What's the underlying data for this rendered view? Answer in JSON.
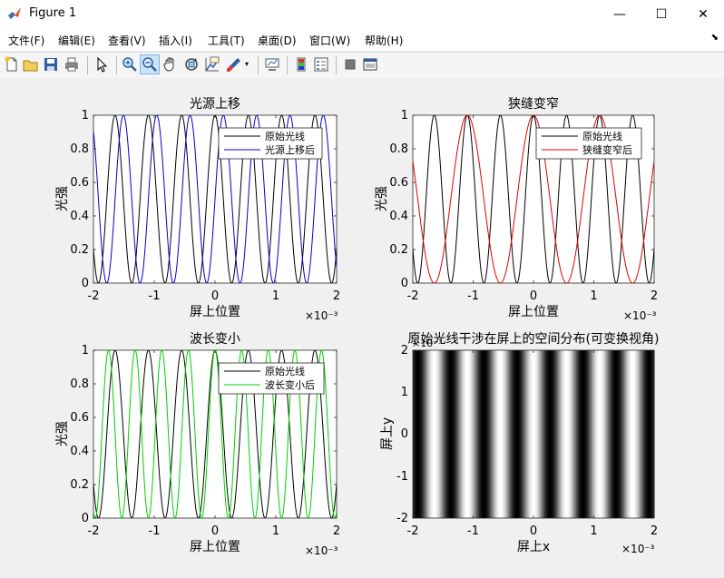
{
  "window": {
    "title": "Figure 1",
    "minimize": "—",
    "maximize": "☐",
    "close": "✕"
  },
  "menu": [
    "文件(F)",
    "编辑(E)",
    "查看(V)",
    "插入(I)",
    "工具(T)",
    "桌面(D)",
    "窗口(W)",
    "帮助(H)"
  ],
  "toolbar": {
    "icons": [
      "new-figure-icon",
      "open-file-icon",
      "save-icon",
      "print-icon",
      "pointer-icon",
      "zoom-in-icon",
      "zoom-out-icon",
      "pan-icon",
      "rotate-3d-icon",
      "data-cursor-icon",
      "brush-icon",
      "brush-dropdown-icon",
      "link-plot-icon",
      "insert-colorbar-icon",
      "insert-legend-icon",
      "hide-plot-tools-icon",
      "show-plot-tools-icon"
    ]
  },
  "colors": {
    "original": "#000000",
    "shift": "#0000cc",
    "narrow": "#e00000",
    "wavelength": "#00d000"
  },
  "chart_data": [
    {
      "type": "line",
      "title": "光源上移",
      "xlabel": "屏上位置",
      "ylabel": "光强",
      "x_exponent": "×10⁻³",
      "xlim": [
        -0.002,
        0.002
      ],
      "ylim": [
        0,
        1
      ],
      "xticks": [
        "-2",
        "-1",
        "0",
        "1",
        "2"
      ],
      "yticks": [
        "0",
        "0.2",
        "0.4",
        "0.6",
        "0.8",
        "1"
      ],
      "legend": {
        "position": "top-right",
        "entries": [
          "原始光线",
          "光源上移后"
        ]
      },
      "series": [
        {
          "name": "原始光线",
          "function": "cos^2",
          "fringe_period": 0.000548,
          "phase_offset": 0.0,
          "color": "#000000"
        },
        {
          "name": "光源上移后",
          "function": "cos^2",
          "fringe_period": 0.000548,
          "phase_offset": 0.000137,
          "color": "#0000cc"
        }
      ]
    },
    {
      "type": "line",
      "title": "狭缝变窄",
      "xlabel": "屏上位置",
      "ylabel": "光强",
      "x_exponent": "×10⁻³",
      "xlim": [
        -0.002,
        0.002
      ],
      "ylim": [
        0,
        1
      ],
      "xticks": [
        "-2",
        "-1",
        "0",
        "1",
        "2"
      ],
      "yticks": [
        "0",
        "0.2",
        "0.4",
        "0.6",
        "0.8",
        "1"
      ],
      "legend": {
        "position": "top-right",
        "entries": [
          "原始光线",
          "狭缝变窄后"
        ]
      },
      "series": [
        {
          "name": "原始光线",
          "function": "cos^2",
          "fringe_period": 0.000548,
          "phase_offset": 0.0,
          "color": "#000000"
        },
        {
          "name": "狭缝变窄后",
          "function": "cos^2",
          "fringe_period": 0.001096,
          "phase_offset": 0.0,
          "color": "#e00000"
        }
      ]
    },
    {
      "type": "line",
      "title": "波长变小",
      "xlabel": "屏上位置",
      "ylabel": "光强",
      "x_exponent": "×10⁻³",
      "xlim": [
        -0.002,
        0.002
      ],
      "ylim": [
        0,
        1
      ],
      "xticks": [
        "-2",
        "-1",
        "0",
        "1",
        "2"
      ],
      "yticks": [
        "0",
        "0.2",
        "0.4",
        "0.6",
        "0.8",
        "1"
      ],
      "legend": {
        "position": "top-right",
        "entries": [
          "原始光线",
          "波长变小后"
        ]
      },
      "series": [
        {
          "name": "原始光线",
          "function": "cos^2",
          "fringe_period": 0.000548,
          "phase_offset": 0.0,
          "color": "#000000"
        },
        {
          "name": "波长变小后",
          "function": "cos^2",
          "fringe_period": 0.000438,
          "phase_offset": 0.0,
          "color": "#00d000"
        }
      ]
    },
    {
      "type": "heatmap",
      "title": "原始光线干涉在屏上的空间分布(可变换视角)",
      "xlabel": "屏上x",
      "ylabel": "屏上y",
      "x_exponent": "×10⁻³",
      "y_exponent": "×10⁻³",
      "xlim": [
        -0.002,
        0.002
      ],
      "ylim": [
        -0.002,
        0.002
      ],
      "xticks": [
        "-2",
        "-1",
        "0",
        "1",
        "2"
      ],
      "yticks": [
        "-2",
        "-1",
        "0",
        "1",
        "2"
      ],
      "function": "cos^2(x)",
      "fringe_period": 0.000548,
      "colormap": "gray"
    }
  ]
}
